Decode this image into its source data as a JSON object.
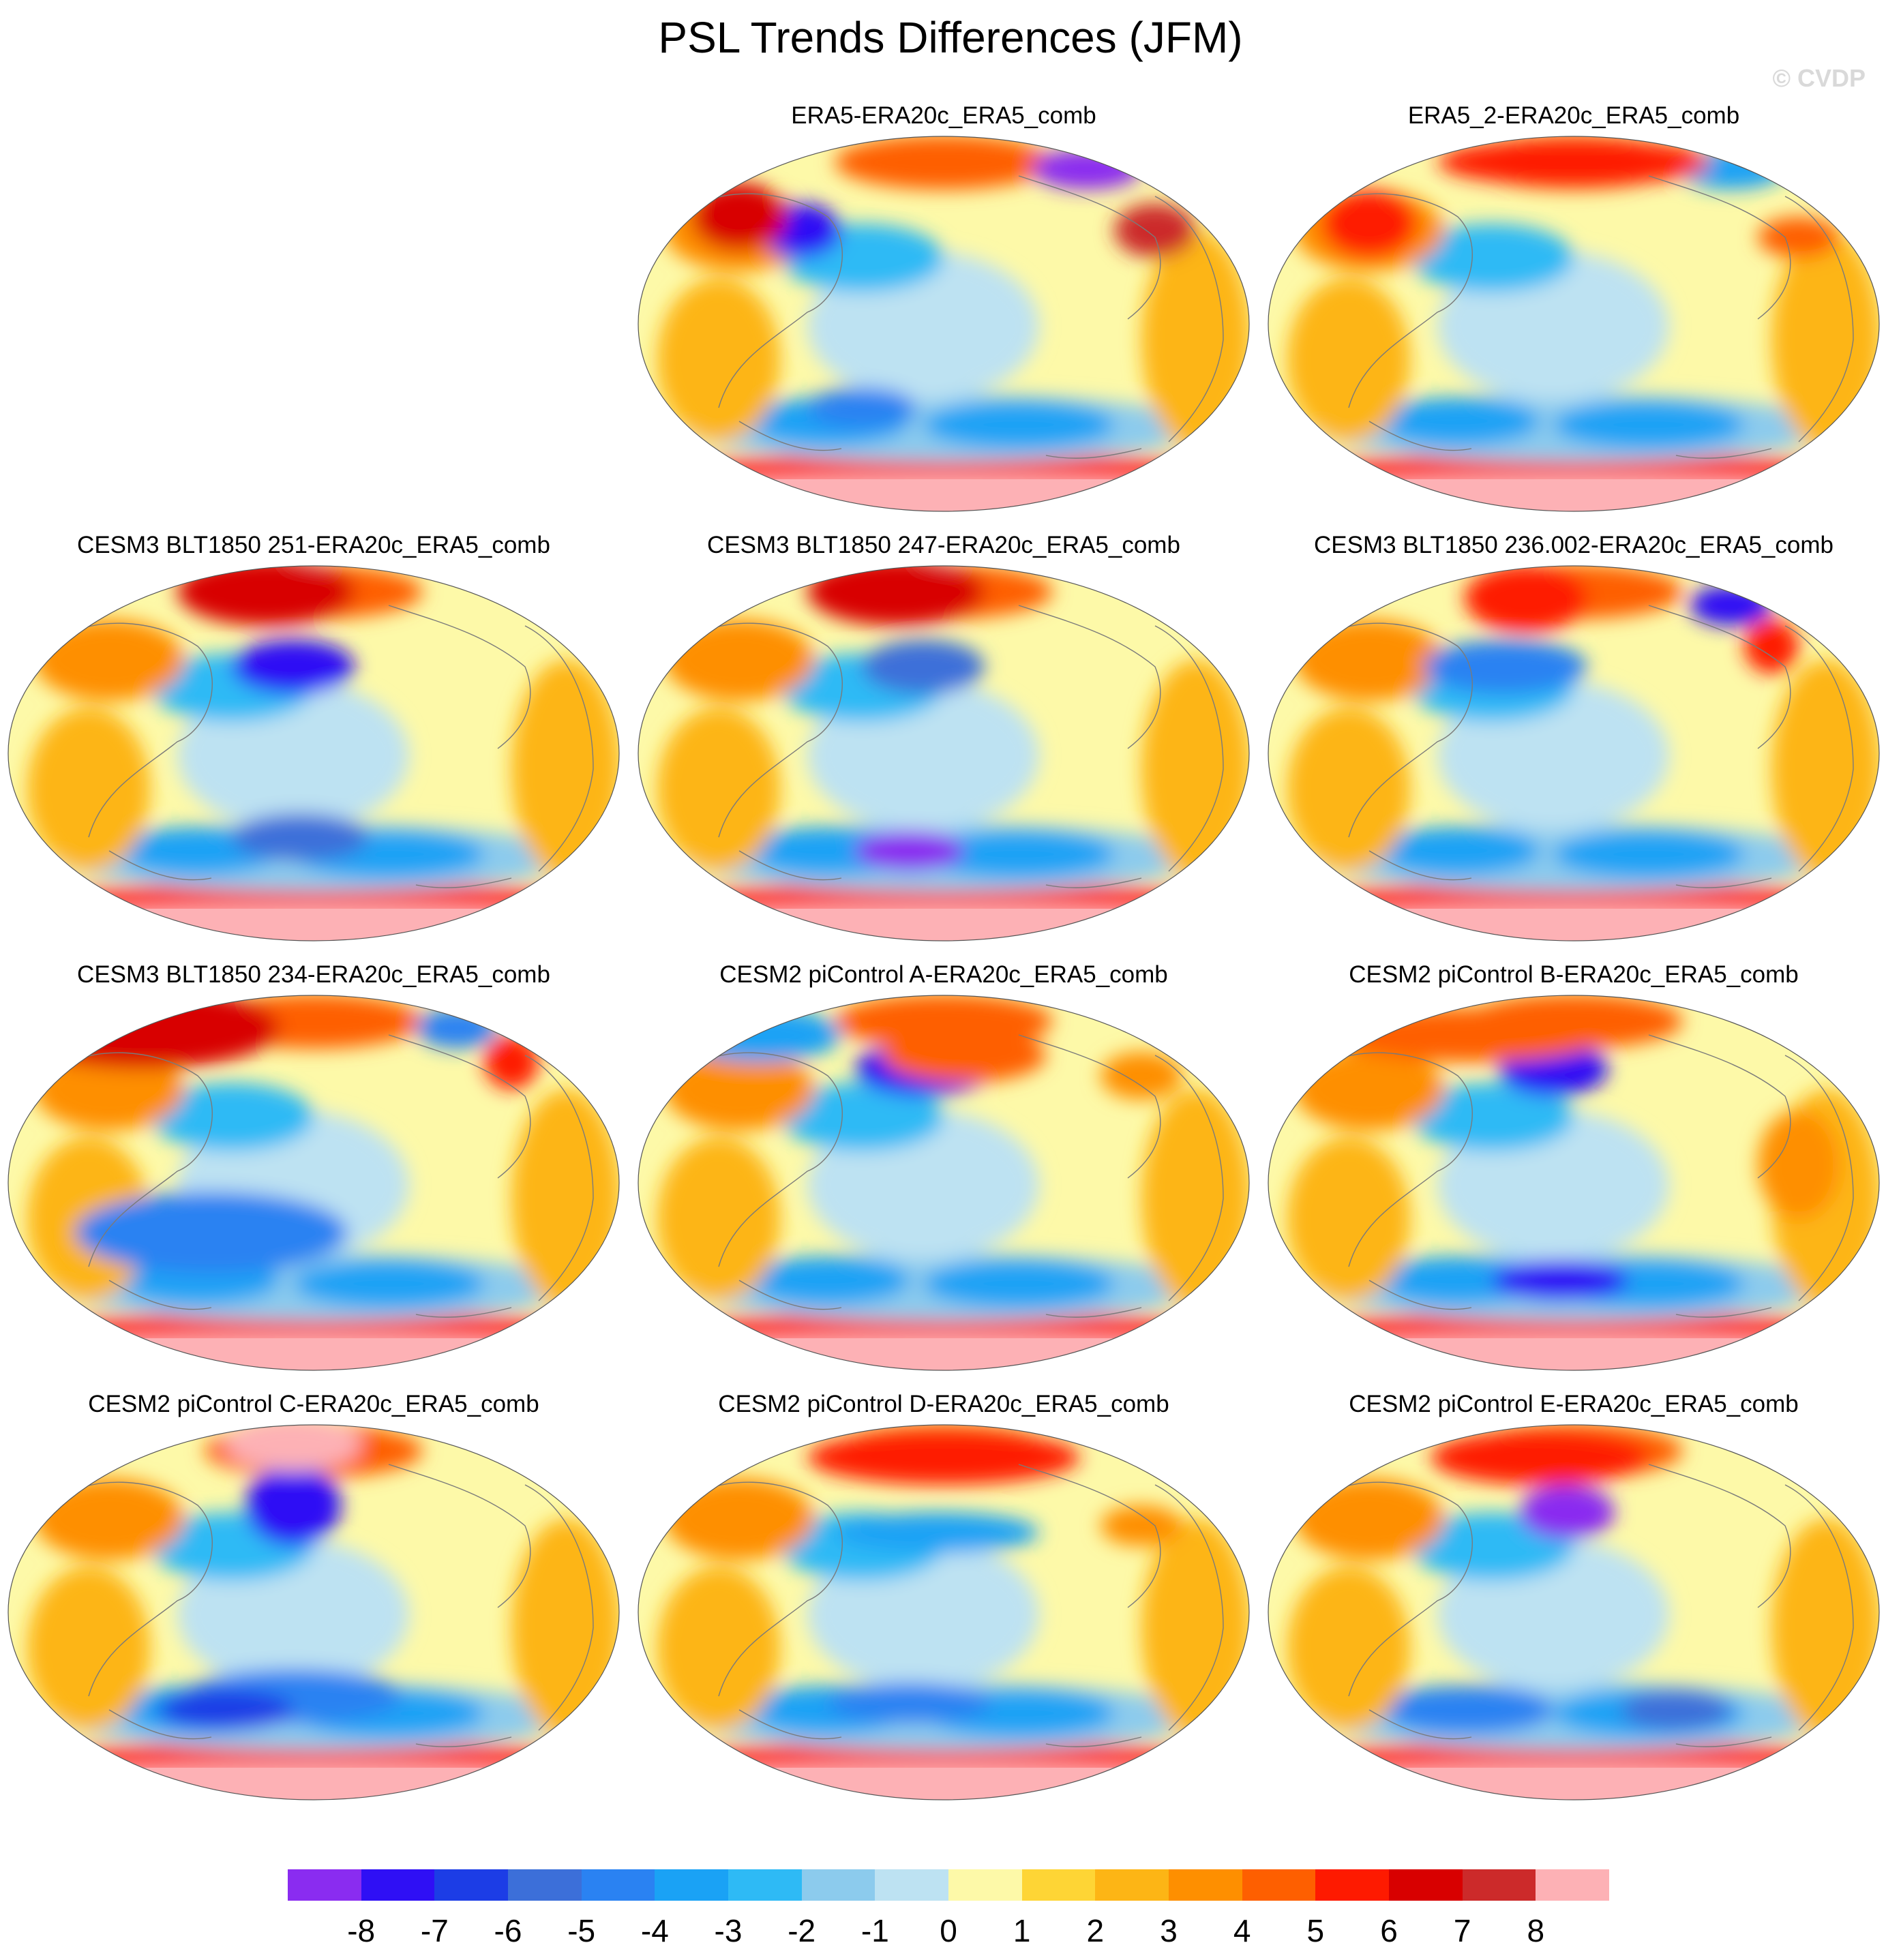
{
  "title": "PSL Trends Differences (JFM)",
  "watermark": "© CVDP",
  "colorbar": {
    "colors": [
      "#8a2cf0",
      "#2f0ff5",
      "#1c3de6",
      "#3c6fd9",
      "#2a82f2",
      "#1aa2f5",
      "#2ebaf5",
      "#8ccbed",
      "#bde2f2",
      "#fdf9a8",
      "#fed535",
      "#fdb515",
      "#fe8f00",
      "#fe5f00",
      "#fe1a00",
      "#d80000",
      "#cc2a2a",
      "#fdb1b5"
    ],
    "labels": [
      "-8",
      "-7",
      "-6",
      "-5",
      "-4",
      "-3",
      "-2",
      "-1",
      "0",
      "1",
      "2",
      "3",
      "4",
      "5",
      "6",
      "7",
      "8"
    ]
  },
  "panels": [
    {
      "title": "ERA5-ERA20c_ERA5_comb"
    },
    {
      "title": "ERA5_2-ERA20c_ERA5_comb"
    },
    {
      "title": "CESM3 BLT1850 251-ERA20c_ERA5_comb"
    },
    {
      "title": "CESM3 BLT1850 247-ERA20c_ERA5_comb"
    },
    {
      "title": "CESM3 BLT1850 236.002-ERA20c_ERA5_comb"
    },
    {
      "title": "CESM3 BLT1850 234-ERA20c_ERA5_comb"
    },
    {
      "title": "CESM2 piControl A-ERA20c_ERA5_comb"
    },
    {
      "title": "CESM2 piControl B-ERA20c_ERA5_comb"
    },
    {
      "title": "CESM2 piControl C-ERA20c_ERA5_comb"
    },
    {
      "title": "CESM2 piControl D-ERA20c_ERA5_comb"
    },
    {
      "title": "CESM2 piControl E-ERA20c_ERA5_comb"
    }
  ]
}
